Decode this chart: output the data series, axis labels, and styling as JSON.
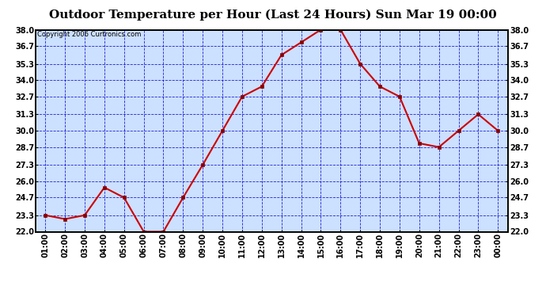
{
  "title": "Outdoor Temperature per Hour (Last 24 Hours) Sun Mar 19 00:00",
  "copyright": "Copyright 2006 Curtronics.com",
  "x_labels": [
    "01:00",
    "02:00",
    "03:00",
    "04:00",
    "05:00",
    "06:00",
    "07:00",
    "08:00",
    "09:00",
    "10:00",
    "11:00",
    "12:00",
    "13:00",
    "14:00",
    "15:00",
    "16:00",
    "17:00",
    "18:00",
    "19:00",
    "20:00",
    "21:00",
    "22:00",
    "23:00",
    "00:00"
  ],
  "y_values": [
    23.3,
    23.0,
    23.3,
    25.5,
    24.7,
    22.0,
    22.0,
    24.7,
    27.3,
    30.0,
    32.7,
    33.5,
    36.0,
    37.0,
    38.0,
    38.0,
    35.3,
    33.5,
    32.7,
    29.0,
    28.7,
    30.0,
    31.3,
    30.0
  ],
  "y_min": 22.0,
  "y_max": 38.0,
  "y_ticks": [
    22.0,
    23.3,
    24.7,
    26.0,
    27.3,
    28.7,
    30.0,
    31.3,
    32.7,
    34.0,
    35.3,
    36.7,
    38.0
  ],
  "line_color": "#cc0000",
  "marker_color": "#880000",
  "bg_color": "#cce0ff",
  "grid_color": "#0000cc",
  "title_color": "#000000",
  "copyright_color": "#000000",
  "title_fontsize": 11,
  "tick_fontsize": 7,
  "copyright_fontsize": 6
}
